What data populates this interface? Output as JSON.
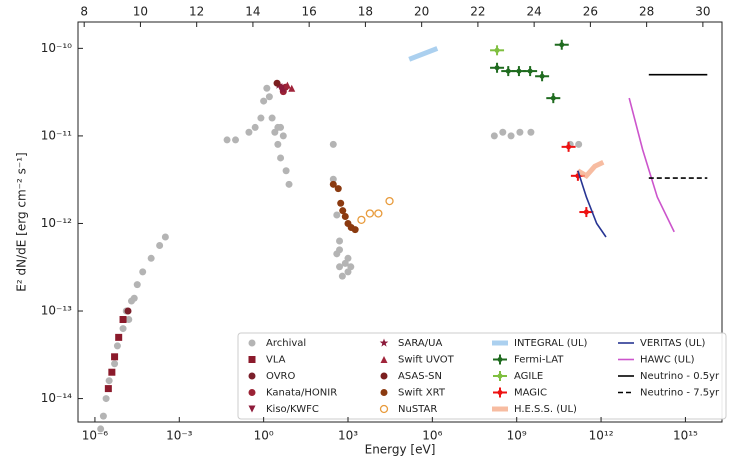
{
  "chart_data": {
    "type": "scatter",
    "x_label": "Energy [eV]",
    "y_label": "E² dN/dE [erg cm⁻² s⁻¹]",
    "log_x": true,
    "log_y": true,
    "xlim": [
      2.5e-07,
      2e+16
    ],
    "xticks": [
      {
        "value": 1e-06,
        "label": "10⁻⁶"
      },
      {
        "value": 0.001,
        "label": "10⁻³"
      },
      {
        "value": 1,
        "label": "10⁰"
      },
      {
        "value": 1000.0,
        "label": "10³"
      },
      {
        "value": 1000000.0,
        "label": "10⁶"
      },
      {
        "value": 1000000000.0,
        "label": "10⁹"
      },
      {
        "value": 1000000000000.0,
        "label": "10¹²"
      },
      {
        "value": 1000000000000000.0,
        "label": "10¹⁵"
      }
    ],
    "x2lim": [
      7.78,
      30.68
    ],
    "x2ticks": [
      8,
      10,
      12,
      14,
      16,
      18,
      20,
      22,
      24,
      26,
      28,
      30
    ],
    "ylim": [
      5.4e-15,
      2e-10
    ],
    "yticks": [
      {
        "value": 1e-14,
        "label": "10⁻¹⁴"
      },
      {
        "value": 1e-13,
        "label": "10⁻¹³"
      },
      {
        "value": 1e-12,
        "label": "10⁻¹²"
      },
      {
        "value": 1e-11,
        "label": "10⁻¹¹"
      },
      {
        "value": 1e-10,
        "label": "10⁻¹⁰"
      }
    ],
    "series": [
      {
        "name": "Archival",
        "color": "#b4b4b4",
        "marker": "circle",
        "x": [
          2e-06,
          2.5e-06,
          3.2e-06,
          5e-06,
          6.3e-06,
          1e-05,
          1.3e-05,
          2e-05,
          3.2e-05,
          5e-05,
          0.0001,
          0.0002,
          0.00032,
          1.6e-06,
          1.6e-05,
          2.5e-05,
          0.05,
          0.1,
          0.3,
          0.5,
          0.8,
          1,
          1.3,
          1.6,
          2,
          2.5,
          3.2,
          4,
          3.2,
          4,
          6.3,
          8,
          5,
          300,
          300,
          400,
          500,
          400,
          500,
          630,
          800,
          500,
          1000,
          1260,
          1000,
          160000000.0,
          320000000.0,
          630000000.0,
          1300000000.0,
          3200000000.0,
          80000000000.0,
          160000000000.0
        ],
        "values": [
          6.3e-15,
          1e-14,
          1.6e-14,
          2.5e-14,
          4e-14,
          6.3e-14,
          1e-13,
          1.3e-13,
          2e-13,
          2.8e-13,
          4e-13,
          5.6e-13,
          7e-13,
          4.5e-15,
          8e-14,
          1.4e-13,
          9e-12,
          9e-12,
          1.1e-11,
          1.25e-11,
          1.6e-11,
          2.5e-11,
          3.5e-11,
          2.8e-11,
          1.6e-11,
          1.1e-11,
          1.25e-11,
          1.25e-11,
          8e-12,
          5.6e-12,
          4e-12,
          2.8e-12,
          1e-11,
          8e-12,
          3.2e-12,
          1.25e-12,
          6.3e-13,
          4.5e-13,
          3.2e-13,
          2.5e-13,
          3.5e-13,
          5e-13,
          2.8e-13,
          3.2e-13,
          4e-13,
          1e-11,
          1.1e-11,
          1e-11,
          1.1e-11,
          1.1e-11,
          8e-12,
          8e-12
        ]
      },
      {
        "name": "VLA",
        "color": "#8b1a2b",
        "marker": "square",
        "x": [
          3e-06,
          4e-06,
          5e-06,
          7e-06,
          1e-05
        ],
        "values": [
          1.3e-14,
          2e-14,
          3e-14,
          5e-14,
          8e-14
        ]
      },
      {
        "name": "OVRO",
        "color": "#7a1f2a",
        "marker": "circle",
        "x": [
          1.5e-05
        ],
        "values": [
          1e-13
        ]
      },
      {
        "name": "Kanata/HONIR",
        "color": "#9b2335",
        "marker": "circle",
        "x": [
          5,
          6
        ],
        "values": [
          3.2e-11,
          3.6e-11
        ]
      },
      {
        "name": "Kiso/KWFC",
        "color": "#8e1b3a",
        "marker": "triangle-down",
        "x": [
          4
        ],
        "values": [
          3.5e-11
        ]
      },
      {
        "name": "SARA/UA",
        "color": "#8b1a3a",
        "marker": "star",
        "x": [
          3.5,
          5
        ],
        "values": [
          3.8e-11,
          3.4e-11
        ]
      },
      {
        "name": "Swift UVOT",
        "color": "#a0243a",
        "marker": "triangle",
        "x": [
          7,
          10
        ],
        "values": [
          3.8e-11,
          3.5e-11
        ]
      },
      {
        "name": "ASAS-SN",
        "color": "#7b1e1e",
        "marker": "circle",
        "x": [
          3
        ],
        "values": [
          4e-11
        ]
      },
      {
        "name": "Swift XRT",
        "color": "#8b3a10",
        "marker": "circle",
        "x": [
          300,
          450,
          550,
          650,
          800,
          1000,
          1300,
          1800
        ],
        "values": [
          2.8e-12,
          2.5e-12,
          1.7e-12,
          1.4e-12,
          1.2e-12,
          1e-12,
          9e-13,
          8.5e-13
        ]
      },
      {
        "name": "NuSTAR",
        "color": "#e89b3c",
        "marker": "open-circle",
        "x": [
          3000,
          6000,
          12000,
          30000
        ],
        "values": [
          1.1e-12,
          1.3e-12,
          1.3e-12,
          1.8e-12
        ]
      },
      {
        "name": "INTEGRAL (UL)",
        "color": "#8fc0ea",
        "marker": "band",
        "x": [
          150000,
          1500000
        ],
        "values": [
          7.5e-11,
          1e-10
        ]
      },
      {
        "name": "Fermi-LAT",
        "color": "#1f6b1f",
        "marker": "plus",
        "x": [
          200000000.0,
          500000000.0,
          1200000000.0,
          3000000000.0,
          8000000000.0,
          20000000000.0,
          40000000000.0
        ],
        "values": [
          6e-11,
          5.5e-11,
          5.5e-11,
          5.5e-11,
          4.8e-11,
          2.7e-11,
          1.1e-10
        ]
      },
      {
        "name": "AGILE",
        "color": "#7fbf3f",
        "marker": "plus",
        "x": [
          200000000.0
        ],
        "values": [
          9.5e-11
        ]
      },
      {
        "name": "MAGIC",
        "color": "#ee1111",
        "marker": "plus",
        "x": [
          70000000000.0,
          150000000000.0,
          300000000000.0
        ],
        "values": [
          7.5e-12,
          3.5e-12,
          1.35e-12
        ]
      },
      {
        "name": "H.E.S.S. (UL)",
        "color": "#f4a582",
        "marker": "band",
        "x": [
          150000000000.0,
          300000000000.0,
          600000000000.0,
          1200000000000.0
        ],
        "values": [
          4e-12,
          3.5e-12,
          4.5e-12,
          5e-12
        ]
      },
      {
        "name": "VERITAS (UL)",
        "color": "#283593",
        "marker": "line",
        "x": [
          150000000000.0,
          300000000000.0,
          700000000000.0,
          1500000000000.0
        ],
        "values": [
          4e-12,
          2e-12,
          1e-12,
          7e-13
        ]
      },
      {
        "name": "HAWC (UL)",
        "color": "#cc55cc",
        "marker": "line",
        "x": [
          10000000000000.0,
          30000000000000.0,
          100000000000000.0,
          400000000000000.0
        ],
        "values": [
          2.7e-11,
          7e-12,
          2e-12,
          8e-13
        ]
      },
      {
        "name": "Neutrino - 0.5yr",
        "color": "#000000",
        "marker": "line",
        "x": [
          50000000000000.0,
          250000000000000.0,
          6000000000000000.0
        ],
        "values": [
          5e-11,
          5e-11,
          5e-11
        ]
      },
      {
        "name": "Neutrino - 7.5yr",
        "color": "#000000",
        "marker": "dashed",
        "x": [
          50000000000000.0,
          250000000000000.0,
          6000000000000000.0
        ],
        "values": [
          3.3e-12,
          3.3e-12,
          3.3e-12
        ]
      }
    ]
  }
}
